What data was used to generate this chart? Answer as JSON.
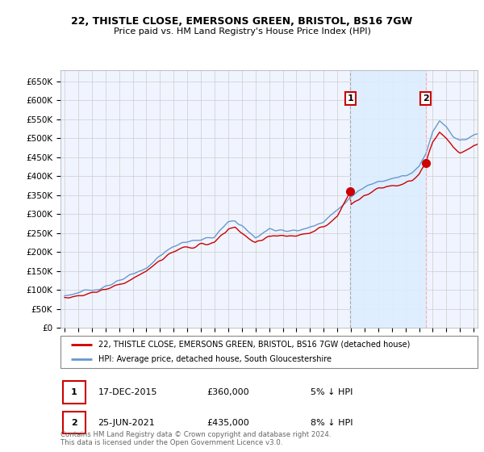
{
  "title1": "22, THISTLE CLOSE, EMERSONS GREEN, BRISTOL, BS16 7GW",
  "title2": "Price paid vs. HM Land Registry's House Price Index (HPI)",
  "line1_color": "#cc0000",
  "line2_color": "#6699cc",
  "line1_label": "22, THISTLE CLOSE, EMERSONS GREEN, BRISTOL, BS16 7GW (detached house)",
  "line2_label": "HPI: Average price, detached house, South Gloucestershire",
  "annotation1_date": "17-DEC-2015",
  "annotation1_price": "£360,000",
  "annotation1_hpi": "5% ↓ HPI",
  "annotation2_date": "25-JUN-2021",
  "annotation2_price": "£435,000",
  "annotation2_hpi": "8% ↓ HPI",
  "footer": "Contains HM Land Registry data © Crown copyright and database right 2024.\nThis data is licensed under the Open Government Licence v3.0.",
  "yticks": [
    0,
    50000,
    100000,
    150000,
    200000,
    250000,
    300000,
    350000,
    400000,
    450000,
    500000,
    550000,
    600000,
    650000
  ],
  "ylim": [
    0,
    680000
  ],
  "sale1_x": 2015.96,
  "sale1_y": 360000,
  "sale2_x": 2021.48,
  "sale2_y": 435000,
  "grid_color": "#cccccc",
  "vline1_color": "#aaaaaa",
  "vline2_color": "#ffaaaa",
  "shade_color": "#ddeeff",
  "plot_bg": "#f0f4ff",
  "xlim_min": 1994.7,
  "xlim_max": 2025.3
}
